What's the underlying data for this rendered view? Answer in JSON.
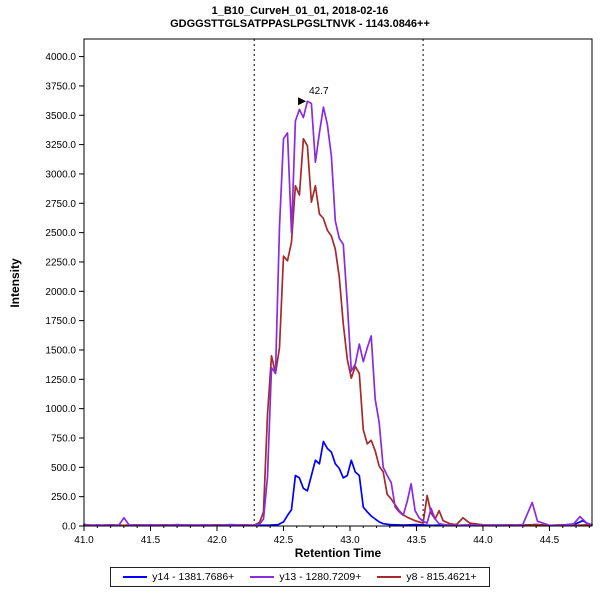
{
  "header": {
    "title": "1_B10_CurveH_01_01, 2018-02-16",
    "subtitle": "GDGGSTTGLSATPPASLPGSLTNVK - 1143.0846++"
  },
  "chart_data": {
    "type": "line",
    "title": "1_B10_CurveH_01_01, 2018-02-16",
    "subtitle": "GDGGSTTGLSATPPASLPGSLTNVK - 1143.0846++",
    "xlabel": "Retention Time",
    "ylabel": "Intensity",
    "xlim": [
      41.0,
      44.82
    ],
    "ylim": [
      0,
      4150
    ],
    "grid": false,
    "legend_position": "bottom",
    "x_tick_values": [
      41.0,
      41.5,
      42.0,
      42.5,
      43.0,
      43.5,
      44.0,
      44.5
    ],
    "x_tick_labels": [
      "41.0",
      "41.5",
      "42.0",
      "42.5",
      "43.0",
      "43.5",
      "44.0",
      "44.5"
    ],
    "y_tick_values": [
      0,
      250,
      500,
      750,
      1000,
      1250,
      1500,
      1750,
      2000,
      2250,
      2500,
      2750,
      3000,
      3250,
      3500,
      3750,
      4000
    ],
    "y_tick_labels": [
      "0.0",
      "250.0",
      "500.0",
      "750.0",
      "1000.0",
      "1250.0",
      "1500.0",
      "1750.0",
      "2000.0",
      "2250.0",
      "2500.0",
      "2750.0",
      "3000.0",
      "3250.0",
      "3500.0",
      "3750.0",
      "4000.0"
    ],
    "integration_boundaries": [
      42.28,
      43.55
    ],
    "peak_annotation": {
      "label": "42.7",
      "x": 42.7,
      "y": 3620,
      "color": "#8A2BE2"
    },
    "series": [
      {
        "name": "y14 - 1381.7686+",
        "color": "#0000FF",
        "points": [
          [
            41.0,
            8
          ],
          [
            41.1,
            4
          ],
          [
            41.2,
            8
          ],
          [
            41.3,
            4
          ],
          [
            41.4,
            8
          ],
          [
            41.5,
            4
          ],
          [
            41.6,
            8
          ],
          [
            41.7,
            4
          ],
          [
            41.8,
            8
          ],
          [
            41.9,
            4
          ],
          [
            42.0,
            8
          ],
          [
            42.1,
            4
          ],
          [
            42.2,
            8
          ],
          [
            42.3,
            5
          ],
          [
            42.4,
            8
          ],
          [
            42.46,
            12
          ],
          [
            42.5,
            35
          ],
          [
            42.53,
            90
          ],
          [
            42.56,
            140
          ],
          [
            42.59,
            430
          ],
          [
            42.62,
            410
          ],
          [
            42.65,
            320
          ],
          [
            42.68,
            300
          ],
          [
            42.71,
            430
          ],
          [
            42.74,
            560
          ],
          [
            42.77,
            530
          ],
          [
            42.8,
            720
          ],
          [
            42.83,
            660
          ],
          [
            42.86,
            630
          ],
          [
            42.89,
            530
          ],
          [
            42.92,
            490
          ],
          [
            42.95,
            410
          ],
          [
            42.98,
            430
          ],
          [
            43.01,
            560
          ],
          [
            43.04,
            460
          ],
          [
            43.07,
            430
          ],
          [
            43.1,
            160
          ],
          [
            43.13,
            120
          ],
          [
            43.16,
            85
          ],
          [
            43.19,
            60
          ],
          [
            43.22,
            35
          ],
          [
            43.25,
            20
          ],
          [
            43.3,
            12
          ],
          [
            43.4,
            8
          ],
          [
            43.5,
            12
          ],
          [
            43.6,
            6
          ],
          [
            43.7,
            8
          ],
          [
            43.8,
            5
          ],
          [
            43.9,
            8
          ],
          [
            44.0,
            5
          ],
          [
            44.1,
            8
          ],
          [
            44.2,
            5
          ],
          [
            44.3,
            8
          ],
          [
            44.4,
            12
          ],
          [
            44.5,
            5
          ],
          [
            44.6,
            8
          ],
          [
            44.7,
            20
          ],
          [
            44.75,
            45
          ],
          [
            44.8,
            10
          ]
        ]
      },
      {
        "name": "y13 - 1280.7209+",
        "color": "#8A2BE2",
        "points": [
          [
            41.0,
            15
          ],
          [
            41.05,
            5
          ],
          [
            41.1,
            10
          ],
          [
            41.15,
            5
          ],
          [
            41.2,
            8
          ],
          [
            41.26,
            4
          ],
          [
            41.3,
            70
          ],
          [
            41.34,
            8
          ],
          [
            41.4,
            6
          ],
          [
            41.5,
            10
          ],
          [
            41.6,
            5
          ],
          [
            41.7,
            12
          ],
          [
            41.8,
            6
          ],
          [
            41.9,
            10
          ],
          [
            42.0,
            6
          ],
          [
            42.1,
            12
          ],
          [
            42.2,
            8
          ],
          [
            42.28,
            6
          ],
          [
            42.32,
            15
          ],
          [
            42.35,
            60
          ],
          [
            42.38,
            420
          ],
          [
            42.41,
            1350
          ],
          [
            42.44,
            1300
          ],
          [
            42.47,
            2550
          ],
          [
            42.5,
            3300
          ],
          [
            42.53,
            3350
          ],
          [
            42.56,
            2500
          ],
          [
            42.59,
            3450
          ],
          [
            42.62,
            3550
          ],
          [
            42.65,
            3480
          ],
          [
            42.68,
            3620
          ],
          [
            42.71,
            3600
          ],
          [
            42.74,
            3100
          ],
          [
            42.77,
            3350
          ],
          [
            42.8,
            3570
          ],
          [
            42.83,
            3420
          ],
          [
            42.86,
            3150
          ],
          [
            42.89,
            2600
          ],
          [
            42.92,
            2450
          ],
          [
            42.95,
            2400
          ],
          [
            42.98,
            1900
          ],
          [
            43.01,
            1320
          ],
          [
            43.04,
            1380
          ],
          [
            43.07,
            1550
          ],
          [
            43.1,
            1400
          ],
          [
            43.13,
            1520
          ],
          [
            43.16,
            1620
          ],
          [
            43.19,
            1080
          ],
          [
            43.22,
            880
          ],
          [
            43.25,
            500
          ],
          [
            43.28,
            430
          ],
          [
            43.31,
            370
          ],
          [
            43.34,
            160
          ],
          [
            43.37,
            120
          ],
          [
            43.4,
            90
          ],
          [
            43.43,
            210
          ],
          [
            43.46,
            360
          ],
          [
            43.49,
            130
          ],
          [
            43.52,
            70
          ],
          [
            43.55,
            40
          ],
          [
            43.58,
            25
          ],
          [
            43.61,
            150
          ],
          [
            43.64,
            60
          ],
          [
            43.67,
            20
          ],
          [
            43.72,
            10
          ],
          [
            43.8,
            6
          ],
          [
            43.9,
            10
          ],
          [
            44.0,
            5
          ],
          [
            44.1,
            8
          ],
          [
            44.2,
            5
          ],
          [
            44.3,
            12
          ],
          [
            44.37,
            200
          ],
          [
            44.41,
            40
          ],
          [
            44.5,
            6
          ],
          [
            44.6,
            5
          ],
          [
            44.68,
            15
          ],
          [
            44.73,
            80
          ],
          [
            44.78,
            25
          ],
          [
            44.82,
            10
          ]
        ]
      },
      {
        "name": "y8 - 815.4621+",
        "color": "#A52A2A",
        "points": [
          [
            41.0,
            10
          ],
          [
            41.1,
            5
          ],
          [
            41.2,
            10
          ],
          [
            41.3,
            6
          ],
          [
            41.4,
            10
          ],
          [
            41.5,
            5
          ],
          [
            41.6,
            10
          ],
          [
            41.7,
            5
          ],
          [
            41.8,
            8
          ],
          [
            41.9,
            5
          ],
          [
            42.0,
            10
          ],
          [
            42.1,
            5
          ],
          [
            42.2,
            10
          ],
          [
            42.28,
            8
          ],
          [
            42.32,
            30
          ],
          [
            42.35,
            120
          ],
          [
            42.38,
            950
          ],
          [
            42.41,
            1450
          ],
          [
            42.44,
            1300
          ],
          [
            42.47,
            1520
          ],
          [
            42.5,
            2300
          ],
          [
            42.53,
            2260
          ],
          [
            42.56,
            2420
          ],
          [
            42.59,
            2900
          ],
          [
            42.62,
            2820
          ],
          [
            42.65,
            3300
          ],
          [
            42.68,
            3240
          ],
          [
            42.71,
            2760
          ],
          [
            42.74,
            2900
          ],
          [
            42.77,
            2660
          ],
          [
            42.8,
            2620
          ],
          [
            42.83,
            2520
          ],
          [
            42.86,
            2470
          ],
          [
            42.89,
            2360
          ],
          [
            42.92,
            2120
          ],
          [
            42.95,
            1720
          ],
          [
            42.98,
            1420
          ],
          [
            43.01,
            1260
          ],
          [
            43.04,
            1360
          ],
          [
            43.07,
            1300
          ],
          [
            43.1,
            820
          ],
          [
            43.13,
            700
          ],
          [
            43.16,
            730
          ],
          [
            43.19,
            640
          ],
          [
            43.22,
            510
          ],
          [
            43.25,
            460
          ],
          [
            43.28,
            270
          ],
          [
            43.31,
            230
          ],
          [
            43.34,
            180
          ],
          [
            43.37,
            130
          ],
          [
            43.4,
            95
          ],
          [
            43.43,
            75
          ],
          [
            43.46,
            60
          ],
          [
            43.49,
            45
          ],
          [
            43.52,
            35
          ],
          [
            43.55,
            25
          ],
          [
            43.58,
            260
          ],
          [
            43.61,
            110
          ],
          [
            43.64,
            60
          ],
          [
            43.67,
            130
          ],
          [
            43.7,
            45
          ],
          [
            43.75,
            20
          ],
          [
            43.8,
            12
          ],
          [
            43.85,
            70
          ],
          [
            43.9,
            25
          ],
          [
            44.0,
            10
          ],
          [
            44.1,
            6
          ],
          [
            44.2,
            10
          ],
          [
            44.3,
            5
          ],
          [
            44.4,
            12
          ],
          [
            44.5,
            6
          ],
          [
            44.6,
            10
          ],
          [
            44.7,
            5
          ],
          [
            44.82,
            12
          ]
        ]
      }
    ]
  }
}
